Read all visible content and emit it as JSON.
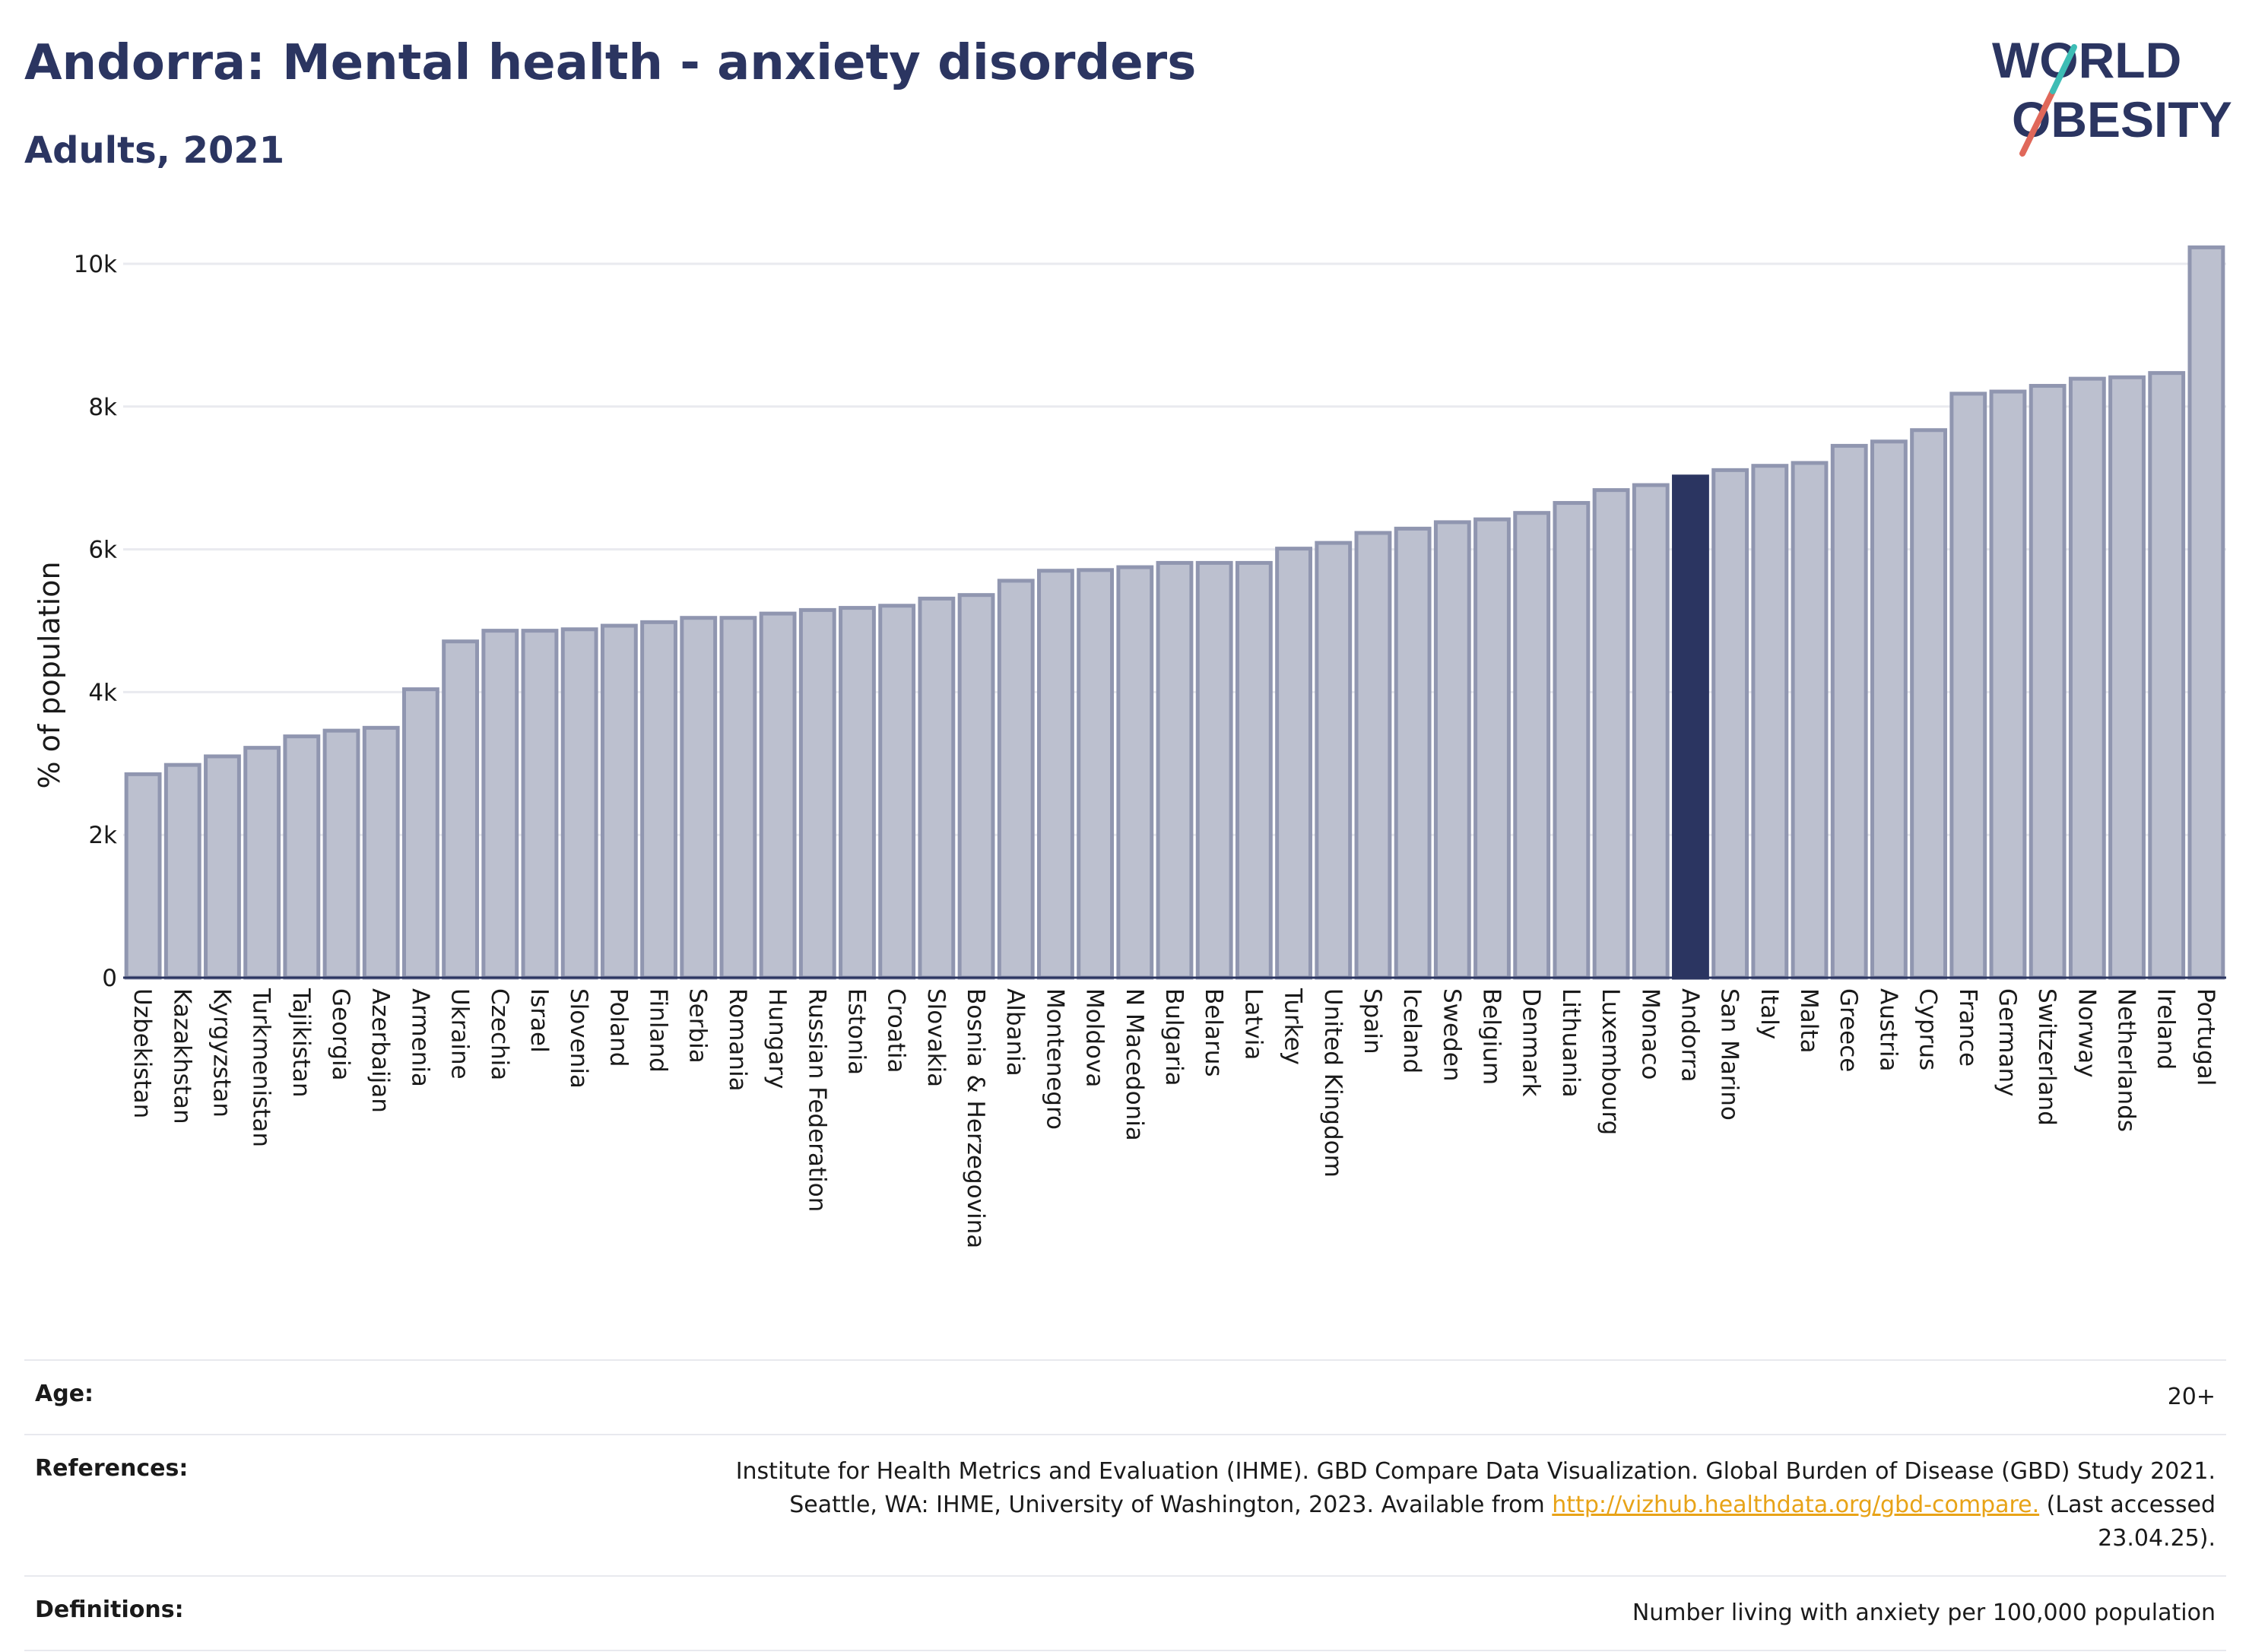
{
  "title": "Andorra: Mental health - anxiety disorders",
  "subtitle": "Adults, 2021",
  "logo": {
    "line1": "WORLD",
    "line2": "OBESITY",
    "accent_colors": [
      "#e0685a",
      "#3dbdb5"
    ]
  },
  "chart_data": {
    "type": "bar",
    "ylabel": "% of population",
    "ylim": [
      0,
      10500
    ],
    "yticks": [
      {
        "value": 0,
        "label": "0"
      },
      {
        "value": 2000,
        "label": "2k"
      },
      {
        "value": 4000,
        "label": "4k"
      },
      {
        "value": 6000,
        "label": "6k"
      },
      {
        "value": 8000,
        "label": "8k"
      },
      {
        "value": 10000,
        "label": "10k"
      }
    ],
    "grid": true,
    "highlight": "Andorra",
    "colors": {
      "bar": "#bcc0cf",
      "bar_edge": "#9096b0",
      "highlight": "#2b3561"
    },
    "categories": [
      "Uzbekistan",
      "Kazakhstan",
      "Kyrgyzstan",
      "Turkmenistan",
      "Tajikistan",
      "Georgia",
      "Azerbaijan",
      "Armenia",
      "Ukraine",
      "Czechia",
      "Israel",
      "Slovenia",
      "Poland",
      "Finland",
      "Serbia",
      "Romania",
      "Hungary",
      "Russian Federation",
      "Estonia",
      "Croatia",
      "Slovakia",
      "Bosnia & Herzegovina",
      "Albania",
      "Montenegro",
      "Moldova",
      "N Macedonia",
      "Bulgaria",
      "Belarus",
      "Latvia",
      "Turkey",
      "United Kingdom",
      "Spain",
      "Iceland",
      "Sweden",
      "Belgium",
      "Denmark",
      "Lithuania",
      "Luxembourg",
      "Monaco",
      "Andorra",
      "San Marino",
      "Italy",
      "Malta",
      "Greece",
      "Austria",
      "Cyprus",
      "France",
      "Germany",
      "Switzerland",
      "Norway",
      "Netherlands",
      "Ireland",
      "Portugal"
    ],
    "values": [
      2850,
      2980,
      3100,
      3220,
      3380,
      3460,
      3500,
      4040,
      4710,
      4860,
      4860,
      4880,
      4930,
      4980,
      5040,
      5040,
      5100,
      5150,
      5180,
      5210,
      5310,
      5360,
      5560,
      5700,
      5710,
      5750,
      5810,
      5810,
      5810,
      6010,
      6090,
      6230,
      6290,
      6380,
      6420,
      6510,
      6650,
      6830,
      6900,
      7020,
      7110,
      7170,
      7210,
      7450,
      7510,
      7670,
      8180,
      8210,
      8290,
      8390,
      8410,
      8470,
      10230
    ]
  },
  "meta": [
    {
      "label": "Age:",
      "value": "20+"
    },
    {
      "label": "References:",
      "value_before": "Institute for Health Metrics and Evaluation (IHME). GBD Compare Data Visualization. Global Burden of Disease (GBD) Study 2021. Seattle, WA: IHME, University of Washington, 2023. Available from ",
      "link": "http://vizhub.healthdata.org/gbd-compare.",
      "value_after": " (Last accessed 23.04.25)."
    },
    {
      "label": "Definitions:",
      "value": "Number living with anxiety per 100,000 population"
    }
  ]
}
